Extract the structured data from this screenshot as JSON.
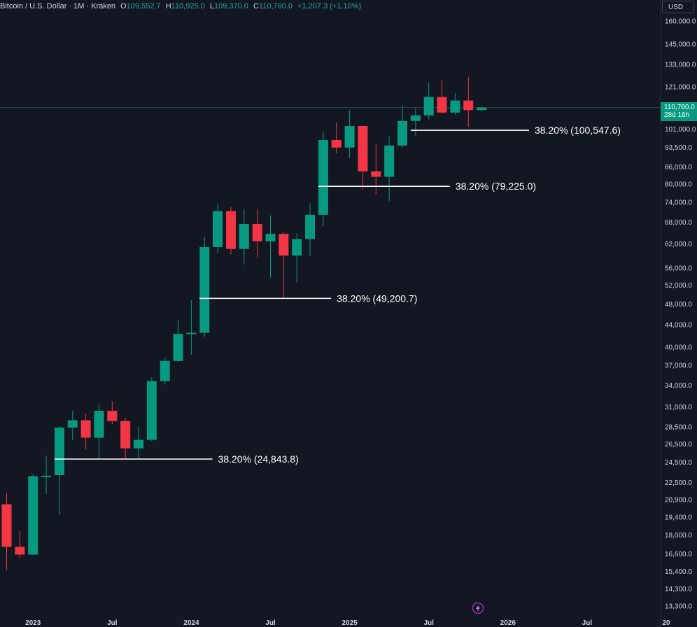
{
  "header": {
    "title": "Bitcoin / U.S. Dollar · 1M · Kraken",
    "open_label": "O",
    "open": "109,552.7",
    "high_label": "H",
    "high": "110,925.0",
    "low_label": "L",
    "low": "109,370.0",
    "close_label": "C",
    "close": "110,760.0",
    "change": "+1,207.3 (+1.10%)"
  },
  "currency": "USD",
  "last_price": {
    "value": "110,760.0",
    "countdown": "28d 16h",
    "color": "#089981"
  },
  "colors": {
    "background": "#131722",
    "up": "#089981",
    "down": "#f23645",
    "text": "#d1d4dc",
    "fib_line": "#ffffff"
  },
  "icons": [
    "lightning-icon"
  ],
  "chart_data": {
    "type": "candlestick",
    "interval": "1M",
    "y_scale": "log",
    "ylim": [
      12800,
      172000
    ],
    "y_ticks": [
      "160,000.0",
      "145,000.0",
      "133,000.0",
      "121,000.0",
      "101,000.0",
      "93,500.0",
      "86,000.0",
      "80,000.0",
      "74,000.0",
      "68,000.0",
      "62,000.0",
      "56,000.0",
      "52,000.0",
      "48,000.0",
      "44,000.0",
      "40,000.0",
      "37,000.0",
      "34,000.0",
      "31,000.0",
      "28,500.0",
      "26,500.0",
      "24,500.0",
      "22,500.0",
      "20,900.0",
      "19,400.0",
      "18,000.0",
      "16,600.0",
      "15,400.0",
      "14,300.0",
      "13,300.0"
    ],
    "x_ticks": [
      {
        "label": "2023",
        "index": 2
      },
      {
        "label": "Jul",
        "index": 8
      },
      {
        "label": "2024",
        "index": 14
      },
      {
        "label": "Jul",
        "index": 20
      },
      {
        "label": "2025",
        "index": 26
      },
      {
        "label": "Jul",
        "index": 32
      },
      {
        "label": "2026",
        "index": 38
      },
      {
        "label": "Jul",
        "index": 44
      },
      {
        "label": "20",
        "index": 50
      }
    ],
    "candles": [
      {
        "o": 20500,
        "h": 21500,
        "l": 15500,
        "c": 17100
      },
      {
        "o": 17100,
        "h": 18300,
        "l": 16300,
        "c": 16550
      },
      {
        "o": 16550,
        "h": 23300,
        "l": 16500,
        "c": 23100
      },
      {
        "o": 23100,
        "h": 25200,
        "l": 21400,
        "c": 23150
      },
      {
        "o": 23200,
        "h": 28600,
        "l": 19600,
        "c": 28400
      },
      {
        "o": 28400,
        "h": 30500,
        "l": 26900,
        "c": 29300
      },
      {
        "o": 29300,
        "h": 30100,
        "l": 25900,
        "c": 27200
      },
      {
        "o": 27200,
        "h": 31400,
        "l": 24800,
        "c": 30500
      },
      {
        "o": 30500,
        "h": 31800,
        "l": 28800,
        "c": 29200
      },
      {
        "o": 29200,
        "h": 29600,
        "l": 24900,
        "c": 26000
      },
      {
        "o": 26000,
        "h": 28500,
        "l": 24900,
        "c": 26950
      },
      {
        "o": 26950,
        "h": 35200,
        "l": 26800,
        "c": 34600
      },
      {
        "o": 34600,
        "h": 38200,
        "l": 34100,
        "c": 37700
      },
      {
        "o": 37700,
        "h": 44900,
        "l": 37600,
        "c": 42300
      },
      {
        "o": 42300,
        "h": 48800,
        "l": 38700,
        "c": 42500
      },
      {
        "o": 42500,
        "h": 63900,
        "l": 41800,
        "c": 61200
      },
      {
        "o": 61200,
        "h": 73400,
        "l": 59500,
        "c": 71300
      },
      {
        "o": 71300,
        "h": 72500,
        "l": 59300,
        "c": 60700
      },
      {
        "o": 60700,
        "h": 71900,
        "l": 56800,
        "c": 67500
      },
      {
        "o": 67500,
        "h": 71900,
        "l": 58600,
        "c": 62700
      },
      {
        "o": 62700,
        "h": 70000,
        "l": 53700,
        "c": 64700
      },
      {
        "o": 64700,
        "h": 65100,
        "l": 49200,
        "c": 59000
      },
      {
        "o": 59000,
        "h": 64900,
        "l": 52600,
        "c": 63300
      },
      {
        "o": 63300,
        "h": 73700,
        "l": 58900,
        "c": 70200
      },
      {
        "o": 70200,
        "h": 99800,
        "l": 66900,
        "c": 96500
      },
      {
        "o": 96500,
        "h": 104100,
        "l": 91200,
        "c": 93400
      },
      {
        "o": 93400,
        "h": 109600,
        "l": 89300,
        "c": 102400
      },
      {
        "o": 102400,
        "h": 102500,
        "l": 78200,
        "c": 84400
      },
      {
        "o": 84400,
        "h": 95000,
        "l": 76600,
        "c": 82500
      },
      {
        "o": 82500,
        "h": 97900,
        "l": 74500,
        "c": 94200
      },
      {
        "o": 94200,
        "h": 111900,
        "l": 93400,
        "c": 104600
      },
      {
        "o": 104600,
        "h": 110400,
        "l": 98300,
        "c": 107100
      },
      {
        "o": 107100,
        "h": 123200,
        "l": 105300,
        "c": 115800
      },
      {
        "o": 115800,
        "h": 124500,
        "l": 108000,
        "c": 108400
      },
      {
        "o": 108400,
        "h": 117900,
        "l": 107400,
        "c": 114100
      },
      {
        "o": 114100,
        "h": 126200,
        "l": 102000,
        "c": 109550
      },
      {
        "o": 109552.7,
        "h": 110925,
        "l": 109370,
        "c": 110760
      }
    ],
    "fib_levels": [
      {
        "label": "38.20% (24,843.8)",
        "value": 24843.8,
        "from_index": 4,
        "to_index": 13
      },
      {
        "label": "38.20% (49,200.7)",
        "value": 49200.7,
        "from_index": 15,
        "to_index": 22
      },
      {
        "label": "38.20% (79,225.0)",
        "value": 79225.0,
        "from_index": 24,
        "to_index": 31
      },
      {
        "label": "38.20% (100,547.6)",
        "value": 100547.6,
        "from_index": 31,
        "to_index": 37
      }
    ],
    "last_price_line": 110760
  }
}
